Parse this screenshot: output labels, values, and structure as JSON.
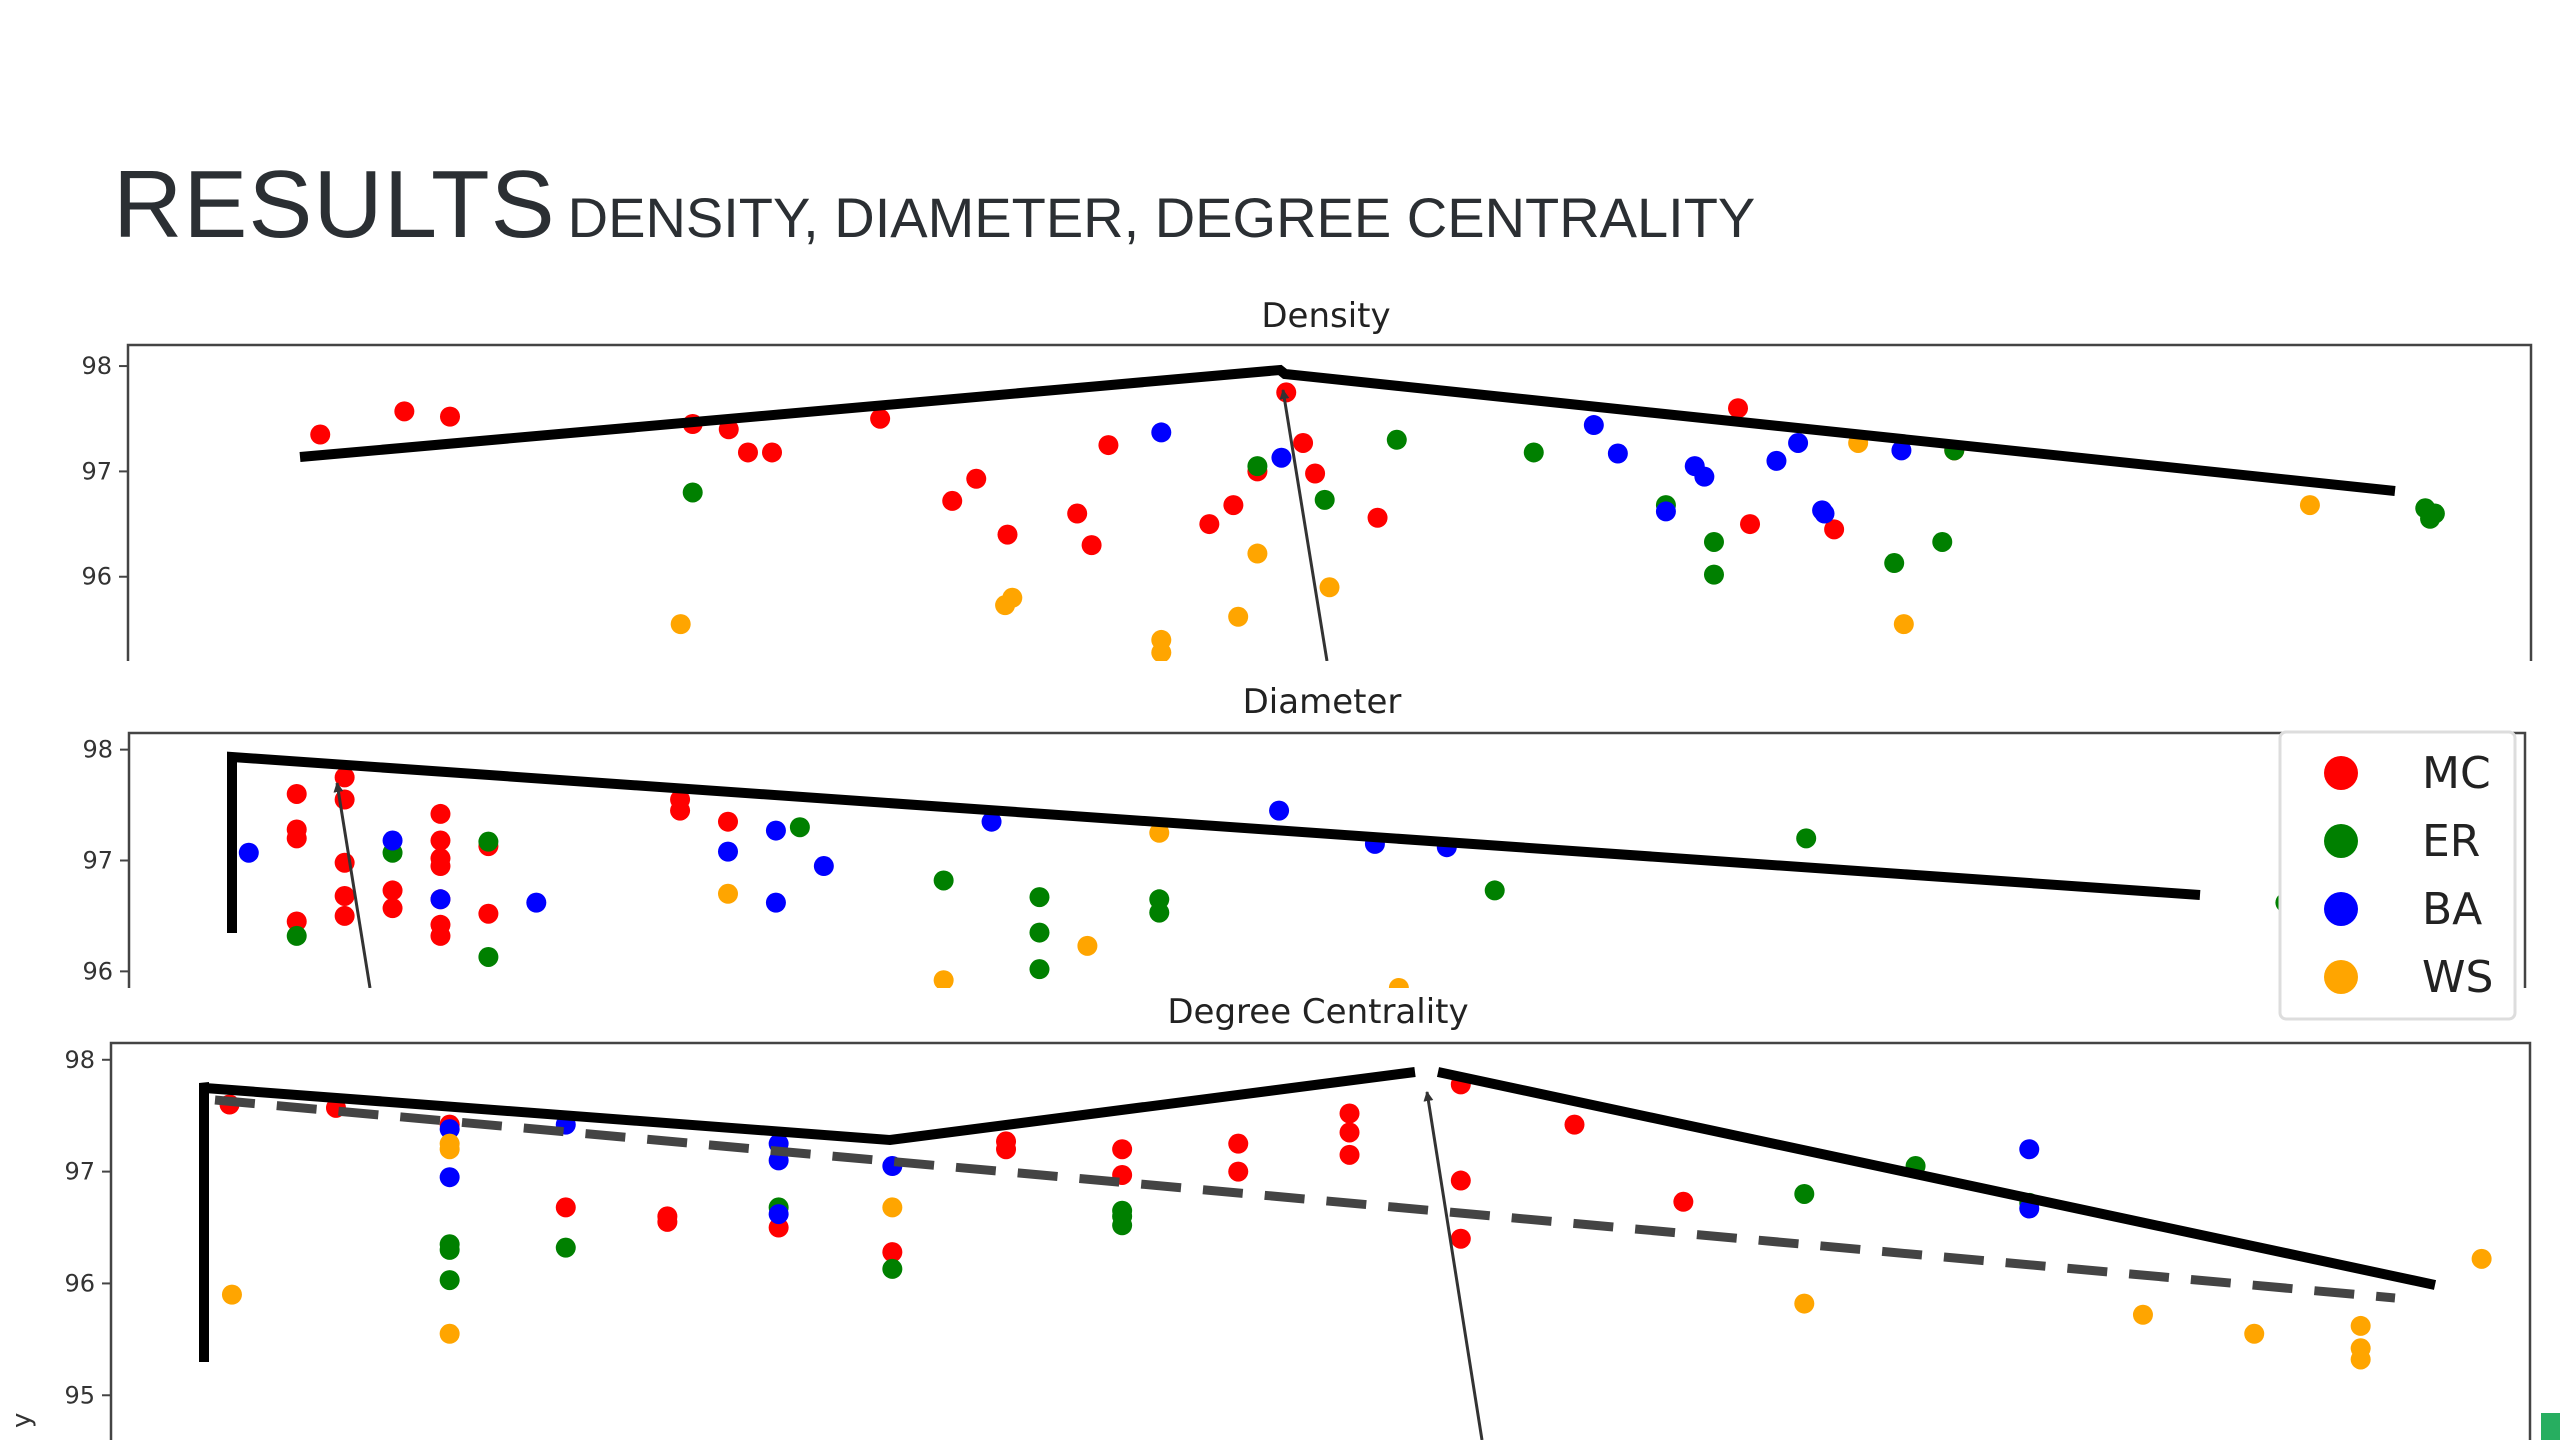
{
  "slide": {
    "title_main": "RESULTS",
    "title_sub": "DENSITY, DIAMETER, DEGREE CENTRALITY"
  },
  "colors": {
    "MC": "#ff0000",
    "ER": "#008000",
    "BA": "#0000ff",
    "WS": "#ffa500"
  },
  "chart_data": [
    {
      "type": "scatter",
      "title": "Density",
      "ylim": [
        95.2,
        98.2
      ],
      "yticks": [
        96,
        97,
        98
      ],
      "xlim": [
        0,
        100
      ],
      "series": [
        {
          "name": "MC",
          "points": [
            [
              8,
              97.35
            ],
            [
              11.5,
              97.57
            ],
            [
              13.4,
              97.52
            ],
            [
              23.5,
              97.45
            ],
            [
              25,
              97.4
            ],
            [
              25.8,
              97.18
            ],
            [
              26.8,
              97.18
            ],
            [
              31.3,
              97.5
            ],
            [
              34.3,
              96.72
            ],
            [
              35.3,
              96.93
            ],
            [
              36.6,
              96.4
            ],
            [
              39.5,
              96.6
            ],
            [
              40.1,
              96.3
            ],
            [
              40.8,
              97.25
            ],
            [
              45,
              96.5
            ],
            [
              46,
              96.68
            ],
            [
              47,
              97.0
            ],
            [
              48.2,
              97.75
            ],
            [
              48.9,
              97.27
            ],
            [
              49.4,
              96.98
            ],
            [
              52,
              96.56
            ],
            [
              67,
              97.6
            ],
            [
              67.5,
              96.5
            ],
            [
              71,
              96.45
            ],
            [
              76,
              97.2
            ]
          ]
        },
        {
          "name": "ER",
          "points": [
            [
              23.5,
              96.8
            ],
            [
              47,
              97.05
            ],
            [
              49.8,
              96.73
            ],
            [
              52.8,
              97.3
            ],
            [
              58.5,
              97.18
            ],
            [
              64,
              96.68
            ],
            [
              66,
              96.33
            ],
            [
              66,
              96.02
            ],
            [
              73.5,
              96.13
            ],
            [
              75.5,
              96.33
            ],
            [
              76,
              97.2
            ],
            [
              95.6,
              96.65
            ],
            [
              95.8,
              96.55
            ],
            [
              96,
              96.6
            ]
          ]
        },
        {
          "name": "BA",
          "points": [
            [
              43,
              97.37
            ],
            [
              48,
              97.13
            ],
            [
              61,
              97.44
            ],
            [
              62,
              97.17
            ],
            [
              64,
              96.62
            ],
            [
              65.2,
              97.05
            ],
            [
              65.6,
              96.95
            ],
            [
              68.6,
              97.1
            ],
            [
              69.5,
              97.27
            ],
            [
              70.5,
              96.63
            ],
            [
              70.6,
              96.6
            ],
            [
              73.8,
              97.2
            ]
          ]
        },
        {
          "name": "WS",
          "points": [
            [
              23,
              95.55
            ],
            [
              36.5,
              95.73
            ],
            [
              36.8,
              95.8
            ],
            [
              43,
              95.4
            ],
            [
              43,
              95.28
            ],
            [
              46.2,
              95.62
            ],
            [
              47,
              96.22
            ],
            [
              50,
              95.9
            ],
            [
              72,
              97.27
            ],
            [
              73.9,
              95.55
            ],
            [
              90.8,
              96.68
            ]
          ]
        }
      ]
    },
    {
      "type": "scatter",
      "title": "Diameter",
      "ylim": [
        95.85,
        98.15
      ],
      "yticks": [
        96,
        97,
        98
      ],
      "xlim": [
        0,
        100
      ],
      "series": [
        {
          "name": "MC",
          "points": [
            [
              7,
              97.6
            ],
            [
              7,
              97.28
            ],
            [
              7,
              97.2
            ],
            [
              7,
              96.45
            ],
            [
              9,
              97.75
            ],
            [
              9,
              97.55
            ],
            [
              9,
              96.98
            ],
            [
              9,
              96.68
            ],
            [
              9,
              96.5
            ],
            [
              11,
              96.73
            ],
            [
              11,
              96.57
            ],
            [
              13,
              97.42
            ],
            [
              13,
              97.18
            ],
            [
              13,
              97.02
            ],
            [
              13,
              96.95
            ],
            [
              13,
              96.65
            ],
            [
              13,
              96.42
            ],
            [
              13,
              96.32
            ],
            [
              15,
              97.13
            ],
            [
              15,
              96.52
            ],
            [
              23,
              97.55
            ],
            [
              23,
              97.45
            ],
            [
              25,
              97.35
            ]
          ]
        },
        {
          "name": "ER",
          "points": [
            [
              7,
              96.32
            ],
            [
              11,
              97.07
            ],
            [
              15,
              97.17
            ],
            [
              15,
              96.13
            ],
            [
              28,
              97.3
            ],
            [
              34,
              96.82
            ],
            [
              38,
              96.67
            ],
            [
              38,
              96.35
            ],
            [
              38,
              96.02
            ],
            [
              43,
              96.65
            ],
            [
              43,
              96.53
            ],
            [
              57,
              96.73
            ],
            [
              70,
              97.2
            ],
            [
              90,
              96.62
            ]
          ]
        },
        {
          "name": "BA",
          "points": [
            [
              5,
              97.07
            ],
            [
              11,
              97.18
            ],
            [
              13,
              96.65
            ],
            [
              17,
              96.62
            ],
            [
              25,
              97.08
            ],
            [
              27,
              97.27
            ],
            [
              27,
              96.62
            ],
            [
              29,
              96.95
            ],
            [
              36,
              97.35
            ],
            [
              48,
              97.45
            ],
            [
              52,
              97.15
            ],
            [
              55,
              97.12
            ]
          ]
        },
        {
          "name": "WS",
          "points": [
            [
              25,
              96.7
            ],
            [
              34,
              95.92
            ],
            [
              40,
              96.23
            ],
            [
              43,
              97.25
            ],
            [
              53,
              95.85
            ]
          ]
        }
      ]
    },
    {
      "type": "scatter",
      "title": "Degree Centrality",
      "ylim": [
        94.6,
        98.15
      ],
      "yticks": [
        95,
        96,
        97,
        98
      ],
      "xlim": [
        0,
        100
      ],
      "series": [
        {
          "name": "MC",
          "points": [
            [
              4.9,
              97.6
            ],
            [
              9.3,
              97.57
            ],
            [
              14,
              97.42
            ],
            [
              18.8,
              96.68
            ],
            [
              23,
              96.6
            ],
            [
              23,
              96.55
            ],
            [
              27.6,
              96.5
            ],
            [
              32.3,
              96.28
            ],
            [
              37,
              97.27
            ],
            [
              37,
              97.2
            ],
            [
              41.8,
              97.2
            ],
            [
              41.8,
              96.97
            ],
            [
              46.6,
              97.25
            ],
            [
              46.6,
              97.0
            ],
            [
              51.2,
              97.52
            ],
            [
              51.2,
              97.35
            ],
            [
              51.2,
              97.15
            ],
            [
              55.8,
              97.78
            ],
            [
              55.8,
              96.92
            ],
            [
              55.8,
              96.4
            ],
            [
              60.5,
              97.42
            ],
            [
              65,
              96.73
            ]
          ]
        },
        {
          "name": "ER",
          "points": [
            [
              14,
              96.35
            ],
            [
              14,
              96.3
            ],
            [
              14,
              96.03
            ],
            [
              18.8,
              96.32
            ],
            [
              27.6,
              96.68
            ],
            [
              32.3,
              96.13
            ],
            [
              41.8,
              96.65
            ],
            [
              41.8,
              96.6
            ],
            [
              41.8,
              96.52
            ],
            [
              70,
              96.8
            ],
            [
              74.6,
              97.05
            ],
            [
              79.3,
              96.72
            ]
          ]
        },
        {
          "name": "BA",
          "points": [
            [
              14,
              97.38
            ],
            [
              14,
              96.95
            ],
            [
              18.8,
              97.42
            ],
            [
              27.6,
              97.25
            ],
            [
              27.6,
              97.1
            ],
            [
              27.6,
              96.62
            ],
            [
              32.3,
              97.05
            ],
            [
              79.3,
              97.2
            ],
            [
              79.3,
              96.67
            ]
          ]
        },
        {
          "name": "WS",
          "points": [
            [
              5,
              95.9
            ],
            [
              14,
              97.25
            ],
            [
              14,
              97.2
            ],
            [
              14,
              95.55
            ],
            [
              32.3,
              96.68
            ],
            [
              70,
              95.82
            ],
            [
              84,
              95.72
            ],
            [
              88.6,
              95.55
            ],
            [
              93,
              95.62
            ],
            [
              93,
              95.42
            ],
            [
              93,
              95.32
            ],
            [
              98,
              96.22
            ]
          ]
        }
      ]
    }
  ],
  "legend": {
    "items": [
      "MC",
      "ER",
      "BA",
      "WS"
    ]
  },
  "ylabel_fragment": "y"
}
